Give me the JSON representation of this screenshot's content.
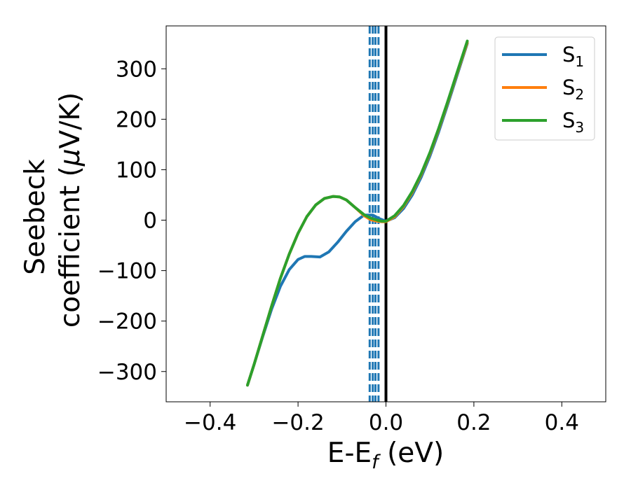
{
  "chart_data": {
    "type": "line",
    "xlabel": {
      "base": "E-E",
      "sub": "f",
      "tail": " (eV)"
    },
    "ylabel": {
      "line1": "Seebeck",
      "line2_pre": "coefficient  (",
      "line2_mu": "μ",
      "line2_post": "V/K)"
    },
    "xlim": [
      -0.5,
      0.5
    ],
    "ylim": [
      -360,
      385
    ],
    "xticks": [
      -0.4,
      -0.2,
      0.0,
      0.2,
      0.4
    ],
    "xtick_labels": [
      "−0.4",
      "−0.2",
      "0.0",
      "0.2",
      "0.4"
    ],
    "yticks": [
      -300,
      -200,
      -100,
      0,
      100,
      200,
      300
    ],
    "ytick_labels": [
      "−300",
      "−200",
      "−100",
      "0",
      "100",
      "200",
      "300"
    ],
    "grid": false,
    "legend_position": "top-right",
    "vertical_lines": [
      {
        "x": 0.0,
        "style": "solid",
        "color": "#000000"
      },
      {
        "x": -0.037,
        "style": "dashed",
        "color": "#1f77b4"
      },
      {
        "x": -0.03,
        "style": "dashed",
        "color": "#1f77b4"
      },
      {
        "x": -0.024,
        "style": "dashed",
        "color": "#1f77b4"
      },
      {
        "x": -0.017,
        "style": "dashed",
        "color": "#1f77b4"
      }
    ],
    "series": [
      {
        "name": "S",
        "sub": "1",
        "color": "#1f77b4",
        "x": [
          -0.315,
          -0.3,
          -0.28,
          -0.26,
          -0.24,
          -0.22,
          -0.2,
          -0.185,
          -0.17,
          -0.15,
          -0.13,
          -0.11,
          -0.09,
          -0.07,
          -0.05,
          -0.03,
          -0.015,
          0.0,
          0.02,
          0.04,
          0.06,
          0.08,
          0.1,
          0.12,
          0.14,
          0.16,
          0.185
        ],
        "y": [
          -327,
          -286,
          -230,
          -176,
          -131,
          -98,
          -78,
          -72,
          -72,
          -73,
          -63,
          -44,
          -22,
          -3,
          10,
          10,
          3,
          -2,
          5,
          23,
          50,
          85,
          127,
          175,
          228,
          282,
          350
        ]
      },
      {
        "name": "S",
        "sub": "2",
        "color": "#ff7f0e",
        "x": [
          -0.315,
          -0.3,
          -0.28,
          -0.26,
          -0.24,
          -0.22,
          -0.2,
          -0.18,
          -0.16,
          -0.14,
          -0.12,
          -0.105,
          -0.09,
          -0.07,
          -0.05,
          -0.035,
          -0.02,
          -0.01,
          0.0,
          0.02,
          0.04,
          0.06,
          0.08,
          0.1,
          0.12,
          0.14,
          0.16,
          0.185
        ],
        "y": [
          -327,
          -286,
          -228,
          -170,
          -115,
          -67,
          -26,
          7,
          30,
          43,
          47,
          46,
          40,
          25,
          9,
          1,
          -2,
          -3,
          -3,
          7,
          27,
          55,
          90,
          132,
          180,
          232,
          286,
          352
        ]
      },
      {
        "name": "S",
        "sub": "3",
        "color": "#2ca02c",
        "x": [
          -0.315,
          -0.3,
          -0.28,
          -0.26,
          -0.24,
          -0.22,
          -0.2,
          -0.18,
          -0.16,
          -0.14,
          -0.12,
          -0.105,
          -0.09,
          -0.07,
          -0.05,
          -0.035,
          -0.02,
          -0.01,
          0.0,
          0.02,
          0.04,
          0.06,
          0.08,
          0.1,
          0.12,
          0.14,
          0.16,
          0.185
        ],
        "y": [
          -327,
          -286,
          -228,
          -170,
          -115,
          -67,
          -26,
          7,
          30,
          43,
          47,
          46,
          40,
          25,
          11,
          4,
          0,
          -2,
          -2,
          9,
          29,
          57,
          92,
          134,
          182,
          234,
          288,
          355
        ]
      }
    ]
  }
}
